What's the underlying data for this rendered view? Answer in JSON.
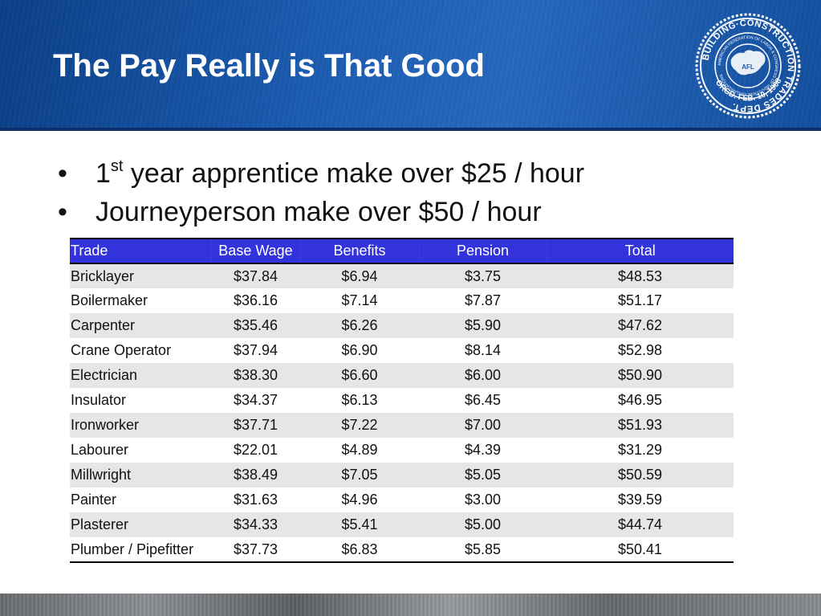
{
  "slide": {
    "title": "The Pay Really is That Good",
    "bullets": [
      {
        "lead": "1",
        "sup": "st",
        "text": " year apprentice make over $25 / hour"
      },
      {
        "lead": "",
        "sup": "",
        "text": "Journeyperson make over $50 / hour"
      }
    ]
  },
  "logo": {
    "outer_text": "BUILDING·CONSTRUCTION TRADES DEPT.",
    "inner_text": "AMERICAN FEDERATION OF LABOR & CONGRESS OF INDUSTRIAL ORGANIZATIONS",
    "center_text": "AFL",
    "bottom_text": "ORGD. FEB. 10, 1908",
    "icon": "building-trades-seal"
  },
  "table": {
    "headers": [
      "Trade",
      "Base Wage",
      "Benefits",
      "Pension",
      "Total"
    ],
    "rows": [
      [
        "Bricklayer",
        "$37.84",
        "$6.94",
        "$3.75",
        "$48.53"
      ],
      [
        "Boilermaker",
        "$36.16",
        "$7.14",
        "$7.87",
        "$51.17"
      ],
      [
        "Carpenter",
        "$35.46",
        "$6.26",
        "$5.90",
        "$47.62"
      ],
      [
        "Crane Operator",
        "$37.94",
        "$6.90",
        "$8.14",
        "$52.98"
      ],
      [
        "Electrician",
        "$38.30",
        "$6.60",
        "$6.00",
        "$50.90"
      ],
      [
        "Insulator",
        "$34.37",
        "$6.13",
        "$6.45",
        "$46.95"
      ],
      [
        "Ironworker",
        "$37.71",
        "$7.22",
        "$7.00",
        "$51.93"
      ],
      [
        "Labourer",
        "$22.01",
        "$4.89",
        "$4.39",
        "$31.29"
      ],
      [
        "Millwright",
        "$38.49",
        "$7.05",
        "$5.05",
        "$50.59"
      ],
      [
        "Painter",
        "$31.63",
        "$4.96",
        "$3.00",
        "$39.59"
      ],
      [
        "Plasterer",
        "$34.33",
        "$5.41",
        "$5.00",
        "$44.74"
      ],
      [
        "Plumber / Pipefitter",
        "$37.73",
        "$6.83",
        "$5.85",
        "$50.41"
      ]
    ]
  },
  "colors": {
    "banner": "#1b5bb0",
    "header_row": "#3333dd",
    "zebra": "#e6e6e6"
  }
}
